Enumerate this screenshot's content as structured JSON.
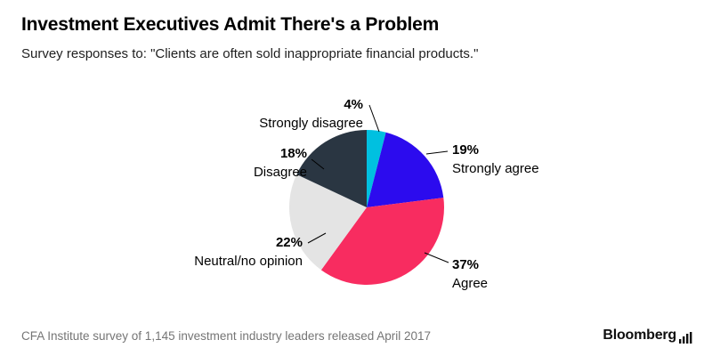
{
  "header": {
    "title": "Investment Executives Admit There's a Problem",
    "subtitle": "Survey responses to: \"Clients are often sold inappropriate financial products.\""
  },
  "chart_data": {
    "type": "pie",
    "title": "Investment Executives Admit There's a Problem",
    "subtitle": "Survey responses to: \"Clients are often sold inappropriate financial products.\"",
    "start_angle_deg": 0,
    "direction": "clockwise",
    "legend_position": "callout-labels",
    "slices": [
      {
        "label": "Strongly disagree",
        "value": 4,
        "display": "4%",
        "color": "#00c0e0"
      },
      {
        "label": "Strongly agree",
        "value": 19,
        "display": "19%",
        "color": "#2c0bee"
      },
      {
        "label": "Agree",
        "value": 37,
        "display": "37%",
        "color": "#f82c60"
      },
      {
        "label": "Neutral/no opinion",
        "value": 22,
        "display": "22%",
        "color": "#e4e4e4"
      },
      {
        "label": "Disagree",
        "value": 18,
        "display": "18%",
        "color": "#2a3642"
      }
    ]
  },
  "footer": {
    "source": "CFA Institute survey of 1,145 investment industry leaders released April 2017",
    "brand": "Bloomberg"
  }
}
